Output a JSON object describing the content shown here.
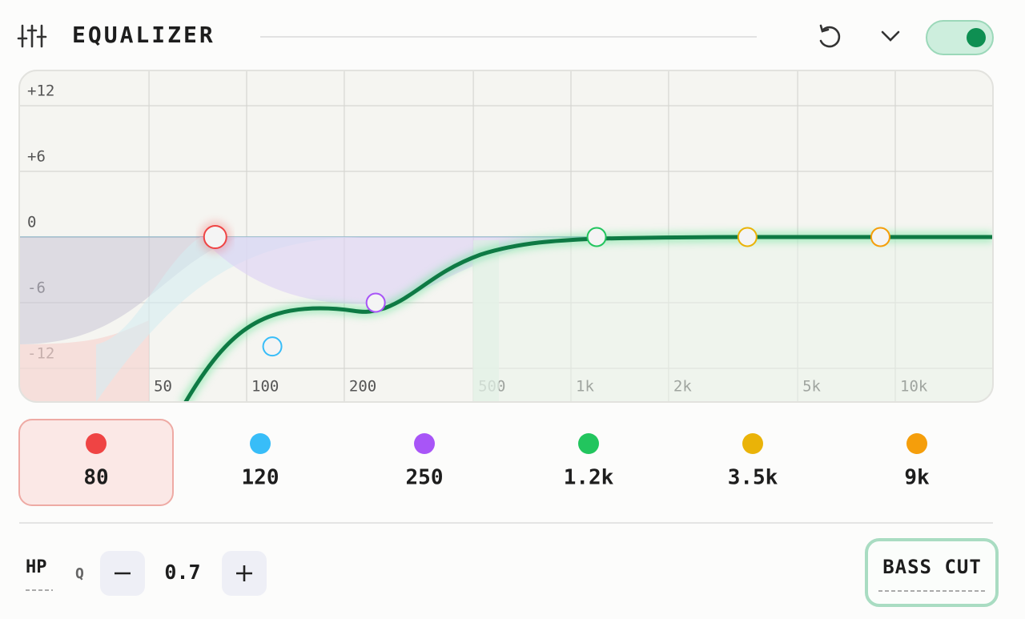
{
  "header": {
    "title": "EQUALIZER"
  },
  "graph": {
    "y_labels": [
      {
        "value": 12,
        "label": "+12"
      },
      {
        "value": 6,
        "label": "+6"
      },
      0,
      -6,
      -12
    ],
    "x_labels": [
      50,
      100,
      200,
      500,
      {
        "value": 1000,
        "label": "1k"
      },
      {
        "value": 2000,
        "label": "2k"
      },
      {
        "value": 5000,
        "label": "5k"
      },
      {
        "value": 10000,
        "label": "10k"
      }
    ]
  },
  "bands": [
    {
      "freq": {
        "value": 80,
        "label": "80"
      },
      "gain": 0,
      "color": "#ef4444"
    },
    {
      "freq": {
        "value": 120,
        "label": "120"
      },
      "gain": -10,
      "color": "#38bdf8"
    },
    {
      "freq": {
        "value": 250,
        "label": "250"
      },
      "gain": -6,
      "color": "#a855f7"
    },
    {
      "freq": {
        "value": 1200,
        "label": "1.2k"
      },
      "gain": 0,
      "color": "#22c55e"
    },
    {
      "freq": {
        "value": 3500,
        "label": "3.5k"
      },
      "gain": 0,
      "color": "#eab308"
    },
    {
      "freq": {
        "value": 9000,
        "label": "9k"
      },
      "gain": 0,
      "color": "#f59e0b"
    }
  ],
  "selected_band": 0,
  "footer": {
    "filter": "HP",
    "q_label": "Q",
    "q_value": "0.7",
    "preset": "BASS CUT"
  }
}
